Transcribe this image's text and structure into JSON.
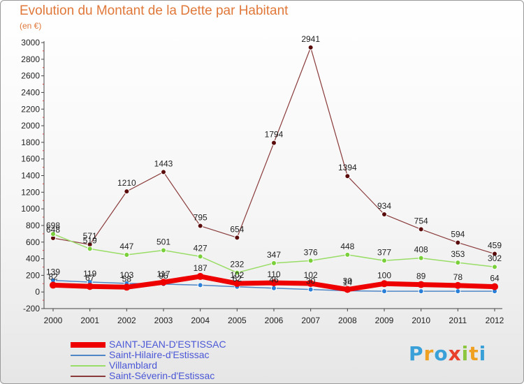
{
  "chart": {
    "title": "Evolution du Montant de la Dette par Habitant",
    "subtitle": "(en €)"
  },
  "chart_data": {
    "type": "line",
    "title": "Evolution du Montant de la Dette par Habitant",
    "subtitle": "(en €)",
    "x": [
      "2000",
      "2001",
      "2002",
      "2003",
      "2004",
      "2005",
      "2006",
      "2007",
      "2008",
      "2009",
      "2010",
      "2011",
      "2012"
    ],
    "ylim": [
      -200,
      3000
    ],
    "yticks": [
      -200,
      0,
      200,
      400,
      600,
      800,
      1000,
      1200,
      1400,
      1600,
      1800,
      2000,
      2200,
      2400,
      2600,
      2800,
      3000
    ],
    "grid": false,
    "legend_position": "bottom-left",
    "series": [
      {
        "name": "SAINT-JEAN-D'ESTISSAC",
        "color": "#ee0000",
        "values": [
          82,
          67,
          58,
          117,
          187,
          102,
          110,
          102,
          30,
          100,
          89,
          78,
          64
        ],
        "labels": [
          "82",
          "67",
          "58",
          "117",
          "187",
          "102",
          "110",
          "102",
          "30",
          "100",
          "89",
          "78",
          "64"
        ]
      },
      {
        "name": "Saint-Hilaire-d'Estissac",
        "color": "#4f86c6",
        "values": [
          139,
          119,
          103,
          95,
          82,
          62,
          46,
          30,
          14,
          9,
          9,
          9,
          9
        ],
        "labels": [
          "139",
          "119",
          "103",
          "95",
          "",
          "62",
          "46",
          "30",
          "14",
          "",
          "",
          "",
          ""
        ]
      },
      {
        "name": "Villamblard",
        "color": "#99dd66",
        "values": [
          698,
          519,
          447,
          501,
          427,
          232,
          347,
          376,
          448,
          377,
          408,
          353,
          302
        ],
        "labels": [
          "698",
          "519",
          "447",
          "501",
          "427",
          "232",
          "347",
          "376",
          "448",
          "377",
          "408",
          "353",
          "302"
        ]
      },
      {
        "name": "Saint-Séverin-d'Estissac",
        "color": "#8a3a3a",
        "values": [
          648,
          571,
          1210,
          1443,
          795,
          654,
          1794,
          2941,
          1394,
          934,
          754,
          594,
          459
        ],
        "labels": [
          "648",
          "571",
          "1210",
          "1443",
          "795",
          "654",
          "1794",
          "2941",
          "1394",
          "934",
          "754",
          "594",
          "459"
        ]
      }
    ]
  },
  "logo": {
    "letters": [
      "P",
      "r",
      "o",
      "x",
      "i",
      "t",
      "i"
    ],
    "colors": [
      "#3aa0d8",
      "#f0a020",
      "#3aa0d8",
      "#e8402a",
      "#8cc63e",
      "#f0a020",
      "#3aa0d8"
    ]
  }
}
